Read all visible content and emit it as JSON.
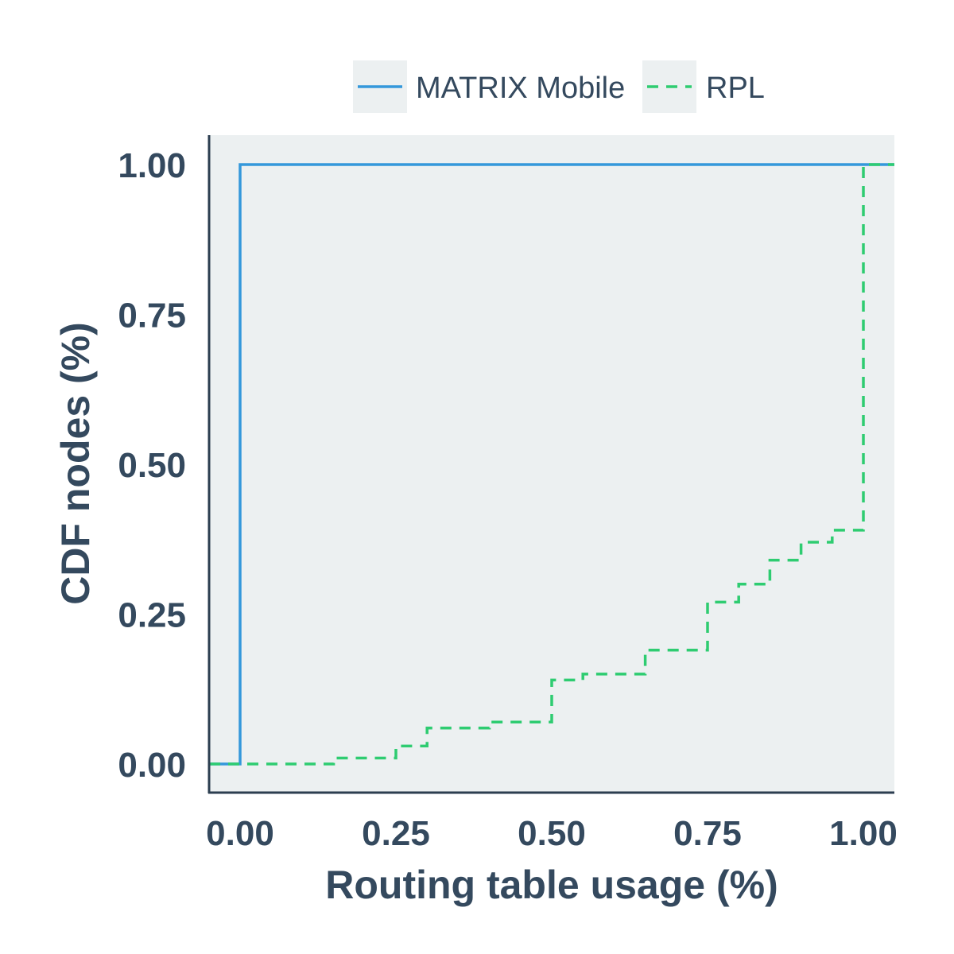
{
  "chart_data": {
    "type": "line",
    "xlabel": "Routing table usage (%)",
    "ylabel": "CDF nodes (%)",
    "xlim": [
      -0.05,
      1.05
    ],
    "ylim": [
      -0.05,
      1.05
    ],
    "xticks": [
      0.0,
      0.25,
      0.5,
      0.75,
      1.0
    ],
    "xtick_labels": [
      "0.00",
      "0.25",
      "0.50",
      "0.75",
      "1.00"
    ],
    "yticks": [
      0.0,
      0.25,
      0.5,
      0.75,
      1.0
    ],
    "ytick_labels": [
      "0.00",
      "0.25",
      "0.50",
      "0.75",
      "1.00"
    ],
    "grid": false,
    "legend_position": "top",
    "series": [
      {
        "name": "MATRIX Mobile",
        "color": "#3498db",
        "dash": "solid",
        "step": true,
        "points": [
          [
            -0.05,
            0.0
          ],
          [
            0.0,
            0.0
          ],
          [
            0.0,
            1.0
          ],
          [
            1.05,
            1.0
          ]
        ]
      },
      {
        "name": "RPL",
        "color": "#2ecc71",
        "dash": "dashed",
        "step": true,
        "points": [
          [
            -0.05,
            0.0
          ],
          [
            0.15,
            0.0
          ],
          [
            0.15,
            0.01
          ],
          [
            0.25,
            0.01
          ],
          [
            0.25,
            0.03
          ],
          [
            0.3,
            0.03
          ],
          [
            0.3,
            0.06
          ],
          [
            0.4,
            0.06
          ],
          [
            0.4,
            0.07
          ],
          [
            0.5,
            0.07
          ],
          [
            0.5,
            0.14
          ],
          [
            0.55,
            0.14
          ],
          [
            0.55,
            0.15
          ],
          [
            0.65,
            0.15
          ],
          [
            0.65,
            0.19
          ],
          [
            0.75,
            0.19
          ],
          [
            0.75,
            0.27
          ],
          [
            0.8,
            0.27
          ],
          [
            0.8,
            0.3
          ],
          [
            0.85,
            0.3
          ],
          [
            0.85,
            0.34
          ],
          [
            0.9,
            0.34
          ],
          [
            0.9,
            0.37
          ],
          [
            0.95,
            0.37
          ],
          [
            0.95,
            0.39
          ],
          [
            1.0,
            0.39
          ],
          [
            1.0,
            1.0
          ],
          [
            1.05,
            1.0
          ]
        ]
      }
    ]
  },
  "colors": {
    "plot_background": "#ecf0f1",
    "axis": "#2c3e50",
    "text": "#34495e"
  }
}
